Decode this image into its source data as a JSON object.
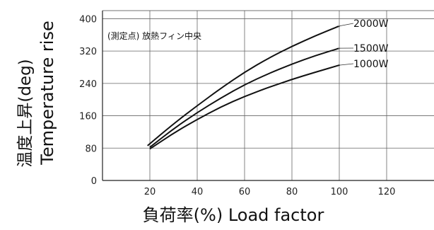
{
  "chart_data": {
    "type": "line",
    "annotation": "(測定点) 放熱フィン中央",
    "xlabel": "負荷率(%)  Load factor",
    "ylabel_jp": "温度上昇(deg)",
    "ylabel_en": "Temperature rise",
    "xlim": [
      0,
      140
    ],
    "ylim": [
      0,
      420
    ],
    "xticks": [
      20,
      40,
      60,
      80,
      100,
      120
    ],
    "yticks": [
      0,
      80,
      160,
      240,
      320,
      400
    ],
    "grid": true,
    "series": [
      {
        "name": "2000W",
        "x": [
          19,
          30,
          40,
          50,
          60,
          70,
          80,
          90,
          100
        ],
        "y": [
          86,
          140,
          185,
          228,
          268,
          302,
          332,
          358,
          382
        ]
      },
      {
        "name": "1500W",
        "x": [
          20,
          30,
          40,
          50,
          60,
          70,
          80,
          90,
          100
        ],
        "y": [
          82,
          128,
          168,
          204,
          237,
          264,
          288,
          309,
          327
        ]
      },
      {
        "name": "1000W",
        "x": [
          20,
          30,
          40,
          50,
          60,
          70,
          80,
          90,
          100
        ],
        "y": [
          78,
          117,
          151,
          182,
          208,
          230,
          250,
          268,
          285
        ]
      }
    ]
  }
}
